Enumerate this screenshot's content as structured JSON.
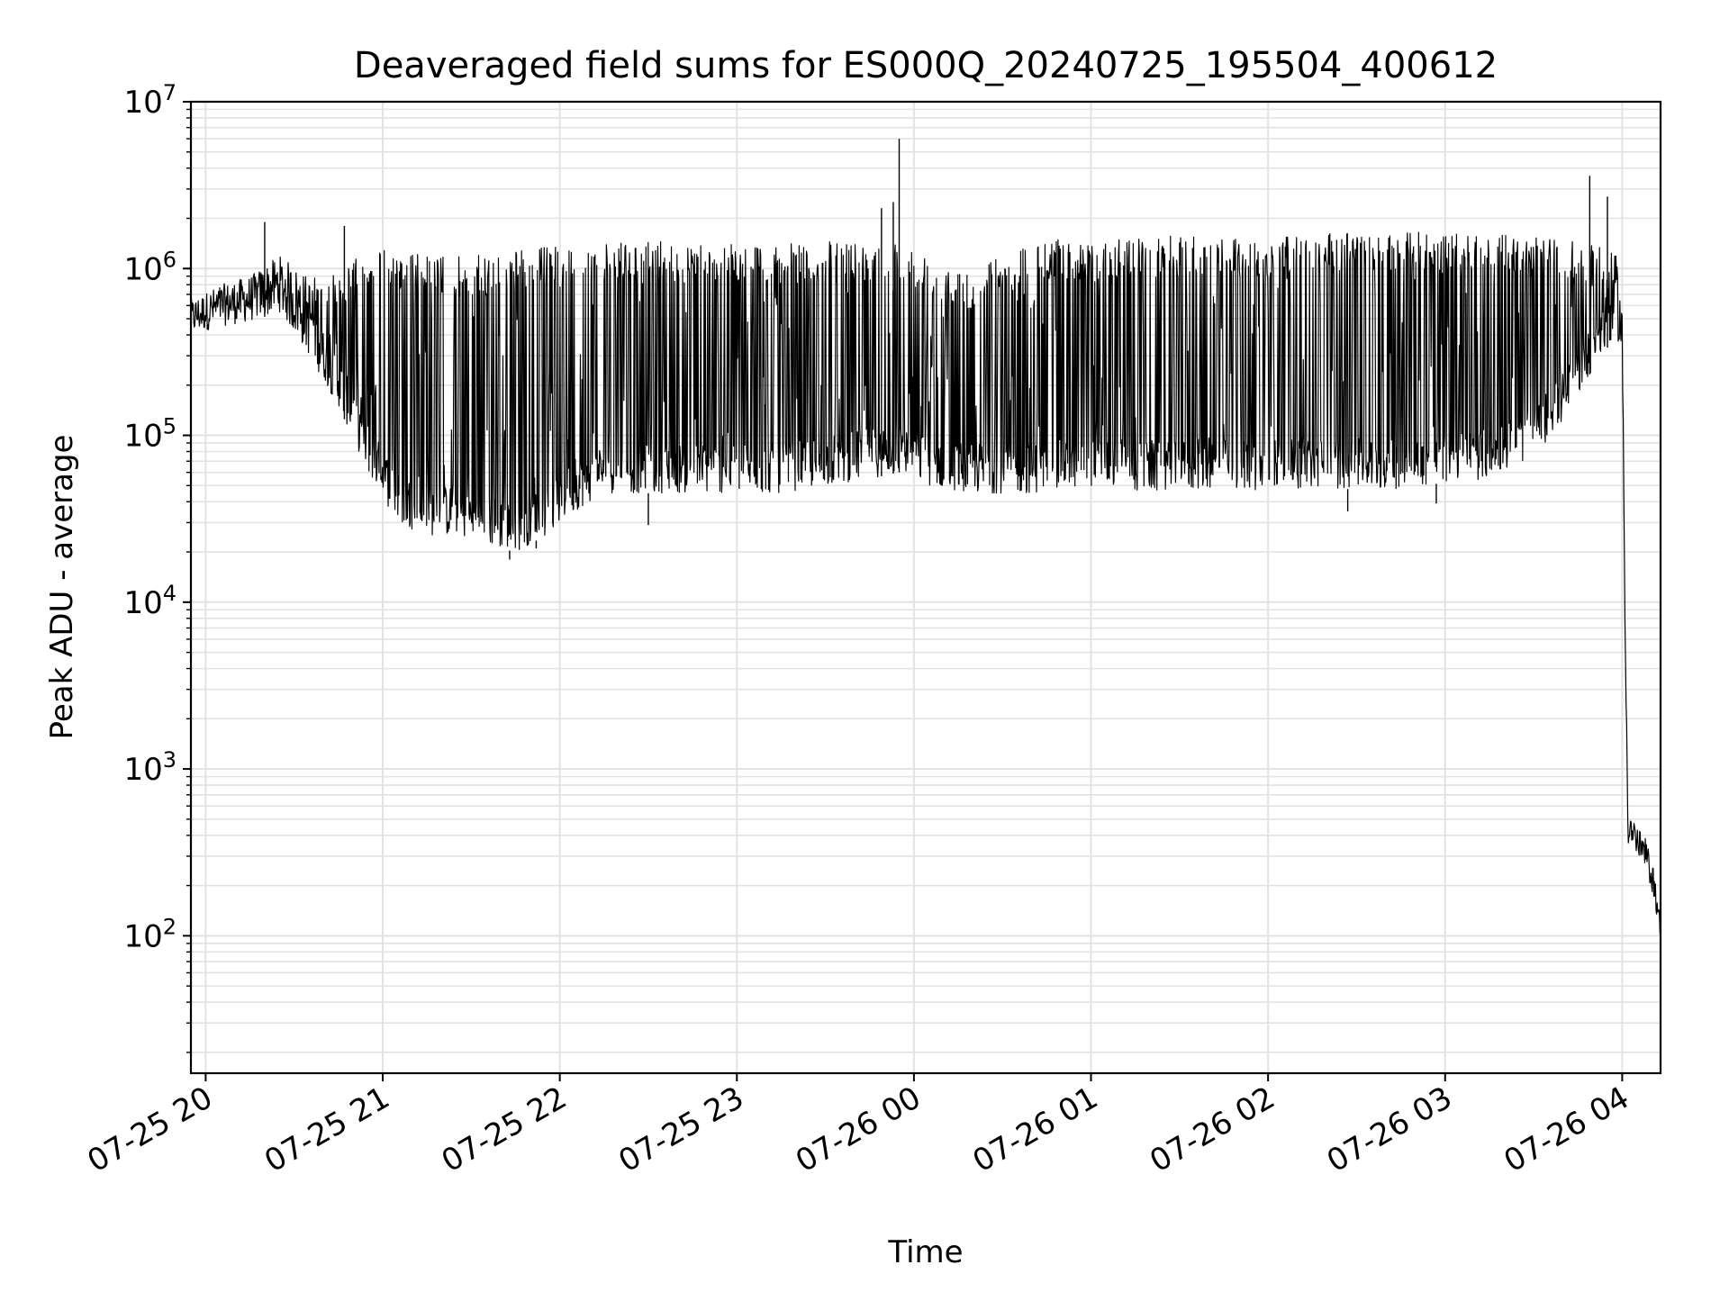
{
  "chart_data": {
    "type": "line",
    "title": "Deaveraged field sums for ES000Q_20240725_195504_400612",
    "xlabel": "Time",
    "ylabel": "Peak ADU - average",
    "y_scale": "log",
    "ylim": [
      15,
      10000000
    ],
    "xlim": [
      "2024-07-25T19:55",
      "2024-07-26T04:13"
    ],
    "grid": true,
    "grid_color": "#e2e2e2",
    "line_color": "#000000",
    "x_ticks": [
      {
        "t": "2024-07-25T20:00",
        "label": "07-25 20"
      },
      {
        "t": "2024-07-25T21:00",
        "label": "07-25 21"
      },
      {
        "t": "2024-07-25T22:00",
        "label": "07-25 22"
      },
      {
        "t": "2024-07-25T23:00",
        "label": "07-25 23"
      },
      {
        "t": "2024-07-26T00:00",
        "label": "07-26 00"
      },
      {
        "t": "2024-07-26T01:00",
        "label": "07-26 01"
      },
      {
        "t": "2024-07-26T02:00",
        "label": "07-26 02"
      },
      {
        "t": "2024-07-26T03:00",
        "label": "07-26 03"
      },
      {
        "t": "2024-07-26T04:00",
        "label": "07-26 04"
      }
    ],
    "y_ticks": [
      {
        "value": 100,
        "base": "10",
        "exp": "2"
      },
      {
        "value": 1000,
        "base": "10",
        "exp": "3"
      },
      {
        "value": 10000,
        "base": "10",
        "exp": "4"
      },
      {
        "value": 100000,
        "base": "10",
        "exp": "5"
      },
      {
        "value": 1000000,
        "base": "10",
        "exp": "6"
      },
      {
        "value": 10000000,
        "base": "10",
        "exp": "7"
      }
    ],
    "series": [
      {
        "x": [
          "2024-07-25T19:55",
          "2024-07-25T20:05",
          "2024-07-25T20:15",
          "2024-07-25T20:25",
          "2024-07-25T20:35",
          "2024-07-25T20:45",
          "2024-07-25T20:55",
          "2024-07-25T21:05",
          "2024-07-25T21:15",
          "2024-07-25T21:25",
          "2024-07-25T21:35",
          "2024-07-25T21:45",
          "2024-07-25T21:55",
          "2024-07-25T22:05",
          "2024-07-25T22:15",
          "2024-07-25T22:30",
          "2024-07-25T22:45",
          "2024-07-25T23:00",
          "2024-07-25T23:15",
          "2024-07-25T23:30",
          "2024-07-25T23:45",
          "2024-07-25T23:55",
          "2024-07-26T00:05",
          "2024-07-26T00:20",
          "2024-07-26T00:40",
          "2024-07-26T01:00",
          "2024-07-26T01:20",
          "2024-07-26T01:40",
          "2024-07-26T02:00",
          "2024-07-26T02:20",
          "2024-07-26T02:40",
          "2024-07-26T03:00",
          "2024-07-26T03:15",
          "2024-07-26T03:30",
          "2024-07-26T03:40",
          "2024-07-26T03:50",
          "2024-07-26T03:58",
          "2024-07-26T04:00",
          "2024-07-26T04:01",
          "2024-07-26T04:02",
          "2024-07-26T04:05",
          "2024-07-26T04:08",
          "2024-07-26T04:11",
          "2024-07-26T04:13"
        ],
        "low": [
          400000,
          450000,
          480000,
          550000,
          300000,
          150000,
          60000,
          30000,
          25000,
          25000,
          22000,
          20000,
          25000,
          35000,
          45000,
          45000,
          45000,
          45000,
          45000,
          50000,
          55000,
          60000,
          50000,
          45000,
          45000,
          50000,
          45000,
          48000,
          47000,
          48000,
          47000,
          52000,
          55000,
          75000,
          120000,
          250000,
          400000,
          300000,
          5000,
          350,
          300,
          250,
          160,
          90
        ],
        "high": [
          650000,
          800000,
          900000,
          1200000,
          900000,
          1000000,
          1300000,
          1300000,
          1200000,
          1200000,
          1200000,
          1300000,
          1350000,
          1400000,
          1400000,
          1450000,
          1450000,
          1400000,
          1400000,
          1450000,
          1500000,
          1450000,
          1200000,
          1000000,
          1500000,
          1500000,
          1550000,
          1600000,
          1500000,
          1650000,
          1650000,
          1650000,
          1600000,
          1550000,
          1500000,
          1400000,
          1200000,
          600000,
          8000,
          650,
          450,
          380,
          240,
          120
        ]
      }
    ],
    "spikes": [
      {
        "t": "2024-07-25T20:20",
        "value": 1900000
      },
      {
        "t": "2024-07-25T20:47",
        "value": 1800000
      },
      {
        "t": "2024-07-25T23:49",
        "value": 2300000
      },
      {
        "t": "2024-07-25T23:53",
        "value": 2500000
      },
      {
        "t": "2024-07-25T23:55",
        "value": 6000000
      },
      {
        "t": "2024-07-26T03:49",
        "value": 3600000
      },
      {
        "t": "2024-07-26T03:55",
        "value": 2700000
      }
    ],
    "dips": [
      {
        "t": "2024-07-25T21:43",
        "value": 18000
      },
      {
        "t": "2024-07-25T21:52",
        "value": 21000
      },
      {
        "t": "2024-07-25T22:30",
        "value": 29000
      },
      {
        "t": "2024-07-26T02:27",
        "value": 35000
      },
      {
        "t": "2024-07-26T02:57",
        "value": 39000
      }
    ]
  }
}
